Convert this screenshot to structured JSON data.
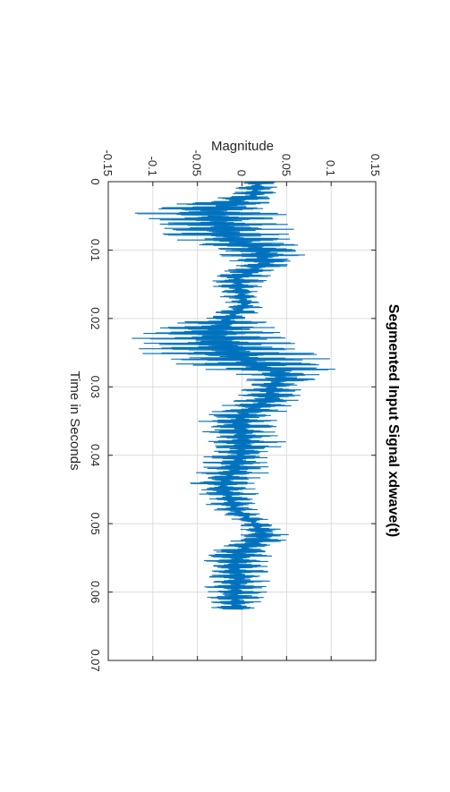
{
  "chart_data": {
    "type": "line",
    "title": "Segmented Input Signal xdwave(t)",
    "xlabel": "Time in Seconds",
    "ylabel": "Magnitude",
    "xlim": [
      0,
      0.07
    ],
    "ylim": [
      -0.15,
      0.15
    ],
    "xticks": [
      "0",
      "0.01",
      "0.02",
      "0.03",
      "0.04",
      "0.05",
      "0.06",
      "0.07"
    ],
    "yticks": [
      "-0.15",
      "-0.1",
      "-0.05",
      "0",
      "0.05",
      "0.1",
      "0.15"
    ],
    "grid": true,
    "orientation": "rotated 90 degrees clockwise",
    "series": [
      {
        "color": "#0072bd",
        "envelope_x": [
          0,
          0.002,
          0.004,
          0.005,
          0.007,
          0.009,
          0.01,
          0.012,
          0.014,
          0.016,
          0.018,
          0.02,
          0.021,
          0.023,
          0.025,
          0.027,
          0.028,
          0.03,
          0.032,
          0.034,
          0.036,
          0.038,
          0.04,
          0.042,
          0.044,
          0.046,
          0.048,
          0.05,
          0.052,
          0.054,
          0.056,
          0.058,
          0.06,
          0.062,
          0.0625
        ],
        "envelope_max": [
          0.04,
          0.045,
          0.065,
          0.06,
          0.065,
          0.08,
          0.085,
          0.06,
          0.03,
          0.025,
          0.025,
          0.02,
          0.05,
          0.07,
          0.095,
          0.115,
          0.1,
          0.07,
          0.07,
          0.05,
          0.045,
          0.05,
          0.04,
          0.035,
          0.02,
          0.02,
          0.02,
          0.035,
          0.06,
          0.04,
          0.03,
          0.035,
          0.03,
          0.025,
          0.02
        ],
        "envelope_min": [
          0.0,
          -0.02,
          -0.13,
          -0.12,
          -0.11,
          -0.08,
          -0.04,
          -0.01,
          -0.04,
          -0.03,
          -0.02,
          -0.05,
          -0.1,
          -0.13,
          -0.12,
          -0.08,
          -0.01,
          0.0,
          -0.015,
          -0.05,
          -0.05,
          -0.045,
          -0.045,
          -0.05,
          -0.065,
          -0.05,
          -0.035,
          -0.005,
          -0.01,
          -0.045,
          -0.045,
          -0.045,
          -0.045,
          -0.04,
          -0.04
        ]
      }
    ]
  }
}
